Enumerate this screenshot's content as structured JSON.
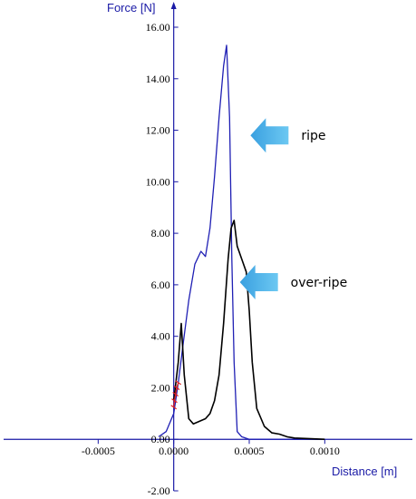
{
  "chart_data": {
    "type": "line",
    "ylabel": "Force   [N]",
    "xlabel": "Distance [m]",
    "xlim": [
      -0.00115,
      0.00158
    ],
    "ylim": [
      -2.0,
      16.0
    ],
    "y_ticks": [
      {
        "value": -2.0,
        "label": "-2.00"
      },
      {
        "value": 0.0,
        "label": "0.00"
      },
      {
        "value": 2.0,
        "label": "2.00"
      },
      {
        "value": 4.0,
        "label": "4.00"
      },
      {
        "value": 6.0,
        "label": "6.00"
      },
      {
        "value": 8.0,
        "label": "8.00"
      },
      {
        "value": 10.0,
        "label": "10.00"
      },
      {
        "value": 12.0,
        "label": "12.00"
      },
      {
        "value": 14.0,
        "label": "14.00"
      },
      {
        "value": 16.0,
        "label": "16.00"
      }
    ],
    "x_ticks": [
      {
        "value": -0.0005,
        "label": "-0.0005"
      },
      {
        "value": 0.0,
        "label": "0.0000"
      },
      {
        "value": 0.0005,
        "label": "0.0005"
      },
      {
        "value": 0.001,
        "label": "0.0010"
      }
    ],
    "grid": false,
    "series": [
      {
        "color": "#1f1fb4",
        "x": [
          -0.0001,
          -5e-05,
          0,
          3e-05,
          6e-05,
          0.0001,
          0.00014,
          0.00018,
          0.00021,
          0.00024,
          0.00027,
          0.0003,
          0.00033,
          0.00035,
          0.00037,
          0.000385,
          0.0004,
          0.00042,
          0.00045,
          0.0005,
          0.0006,
          0.0008,
          0.001
        ],
        "y": [
          0.1,
          0.3,
          1.0,
          2.2,
          3.6,
          5.4,
          6.8,
          7.3,
          7.1,
          8.2,
          10.2,
          12.5,
          14.5,
          15.3,
          12.5,
          7.0,
          3.0,
          0.3,
          0.1,
          0.0,
          0.0,
          0.0,
          0.0
        ]
      },
      {
        "color": "#000000",
        "x": [
          0.0,
          3e-05,
          5e-05,
          7e-05,
          0.0001,
          0.00013,
          0.00017,
          0.00021,
          0.00024,
          0.00027,
          0.0003,
          0.00033,
          0.00036,
          0.00038,
          0.0004,
          0.00042,
          0.00045,
          0.00048,
          0.0005,
          0.00052,
          0.00055,
          0.0006,
          0.00065,
          0.0007,
          0.00075,
          0.0008,
          0.001
        ],
        "y": [
          1.5,
          3.0,
          4.5,
          2.5,
          0.8,
          0.6,
          0.7,
          0.8,
          1.0,
          1.5,
          2.5,
          4.5,
          7.0,
          8.2,
          8.5,
          7.5,
          7.0,
          6.5,
          5.0,
          3.0,
          1.2,
          0.5,
          0.25,
          0.2,
          0.1,
          0.05,
          0.0
        ]
      },
      {
        "color": "#e02020",
        "x": [
          0.0,
          5e-06,
          1.2e-05,
          2e-05,
          3e-05
        ],
        "y": [
          1.25,
          1.5,
          1.75,
          2.0,
          2.2
        ]
      }
    ],
    "annotations": [
      {
        "text": "ripe",
        "x": 0.00082,
        "y": 11.8
      },
      {
        "text": "over-ripe",
        "x": 0.00075,
        "y": 6.1
      }
    ]
  }
}
